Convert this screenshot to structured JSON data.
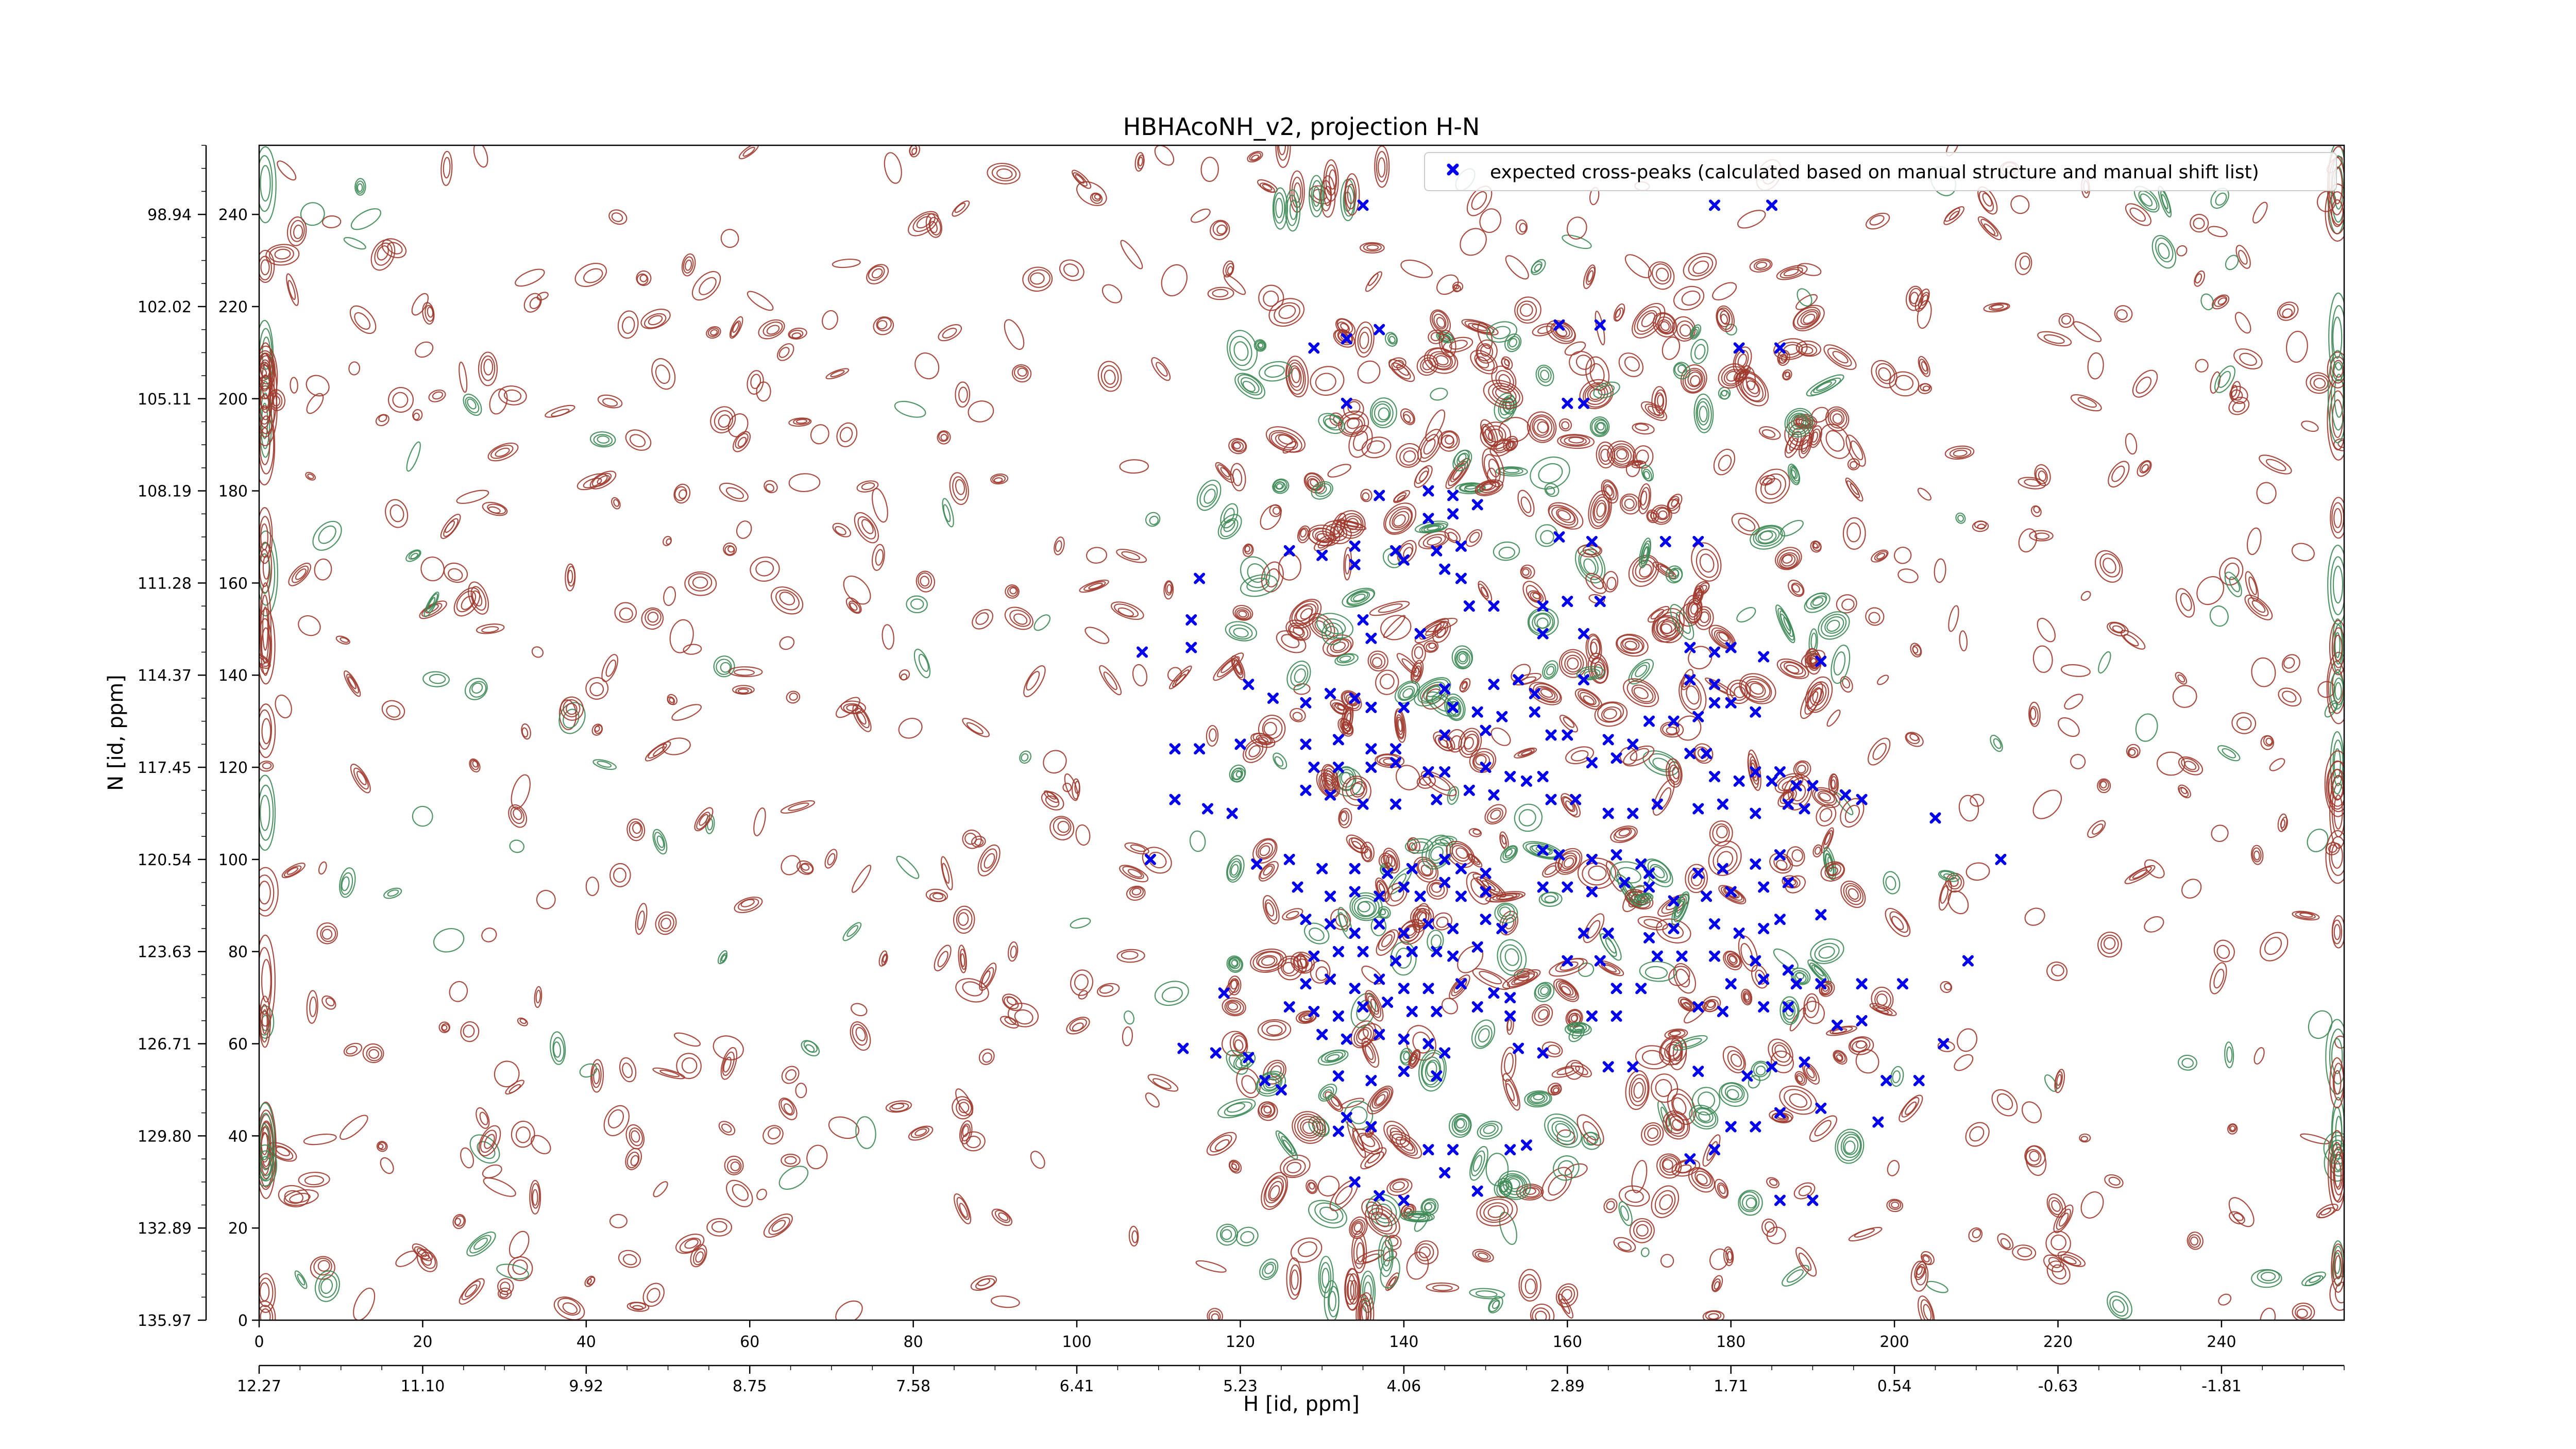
{
  "chart_data": {
    "type": "scatter",
    "title": "HBHAcoNH_v2, projection H-N",
    "xlabel": "H [id, ppm]",
    "ylabel": "N [id, ppm]",
    "xlim": [
      0,
      255
    ],
    "ylim": [
      0,
      255
    ],
    "grid": false,
    "legend": {
      "position": "top-right",
      "entries": [
        "expected cross-peaks (calculated based on manual structure and manual shift list)"
      ]
    },
    "x_index_ticks": [
      "0",
      "20",
      "40",
      "60",
      "80",
      "100",
      "120",
      "140",
      "160",
      "180",
      "200",
      "220",
      "240"
    ],
    "x_ppm_ticks": [
      "12.27",
      "11.10",
      "9.92",
      "8.75",
      "7.58",
      "6.41",
      "5.23",
      "4.06",
      "2.89",
      "1.71",
      "0.54",
      "-0.63",
      "-1.81"
    ],
    "y_index_ticks": [
      "0",
      "20",
      "40",
      "60",
      "80",
      "100",
      "120",
      "140",
      "160",
      "180",
      "200",
      "220",
      "240"
    ],
    "y_ppm_ticks": [
      "135.97",
      "132.89",
      "129.80",
      "126.71",
      "123.63",
      "120.54",
      "117.45",
      "114.37",
      "111.28",
      "108.19",
      "105.11",
      "102.02",
      "98.94"
    ],
    "colors": {
      "positive_contours": "#a0392c",
      "negative_contours": "#3d8a55",
      "peaks": "#0000ee"
    },
    "series": [
      {
        "name": "expected cross-peaks (calculated based on manual structure and manual shift list)",
        "points": [
          [
            135,
            242
          ],
          [
            185,
            242
          ],
          [
            178,
            242
          ],
          [
            129,
            211
          ],
          [
            133,
            213
          ],
          [
            137,
            215
          ],
          [
            159,
            216
          ],
          [
            164,
            216
          ],
          [
            181,
            211
          ],
          [
            186,
            211
          ],
          [
            133,
            199
          ],
          [
            160,
            199
          ],
          [
            162,
            199
          ],
          [
            137,
            179
          ],
          [
            143,
            180
          ],
          [
            146,
            179
          ],
          [
            143,
            174
          ],
          [
            146,
            175
          ],
          [
            149,
            177
          ],
          [
            159,
            170
          ],
          [
            163,
            169
          ],
          [
            172,
            169
          ],
          [
            176,
            169
          ],
          [
            126,
            167
          ],
          [
            130,
            166
          ],
          [
            134,
            168
          ],
          [
            139,
            167
          ],
          [
            144,
            167
          ],
          [
            147,
            168
          ],
          [
            134,
            164
          ],
          [
            140,
            165
          ],
          [
            145,
            163
          ],
          [
            147,
            161
          ],
          [
            115,
            161
          ],
          [
            157,
            155
          ],
          [
            160,
            156
          ],
          [
            164,
            156
          ],
          [
            148,
            155
          ],
          [
            151,
            155
          ],
          [
            135,
            152
          ],
          [
            136,
            148
          ],
          [
            142,
            149
          ],
          [
            157,
            149
          ],
          [
            162,
            149
          ],
          [
            114,
            152
          ],
          [
            108,
            145
          ],
          [
            114,
            146
          ],
          [
            121,
            138
          ],
          [
            131,
            136
          ],
          [
            145,
            137
          ],
          [
            151,
            138
          ],
          [
            154,
            139
          ],
          [
            156,
            136
          ],
          [
            162,
            139
          ],
          [
            175,
            146
          ],
          [
            178,
            145
          ],
          [
            180,
            146
          ],
          [
            175,
            139
          ],
          [
            178,
            138
          ],
          [
            184,
            144
          ],
          [
            191,
            143
          ],
          [
            124,
            135
          ],
          [
            128,
            134
          ],
          [
            134,
            135
          ],
          [
            136,
            133
          ],
          [
            140,
            133
          ],
          [
            146,
            133
          ],
          [
            149,
            132
          ],
          [
            152,
            131
          ],
          [
            156,
            132
          ],
          [
            178,
            134
          ],
          [
            180,
            134
          ],
          [
            183,
            132
          ],
          [
            170,
            130
          ],
          [
            173,
            130
          ],
          [
            176,
            131
          ],
          [
            145,
            127
          ],
          [
            150,
            128
          ],
          [
            158,
            127
          ],
          [
            160,
            127
          ],
          [
            165,
            126
          ],
          [
            168,
            125
          ],
          [
            112,
            124
          ],
          [
            115,
            124
          ],
          [
            120,
            125
          ],
          [
            128,
            125
          ],
          [
            132,
            126
          ],
          [
            136,
            124
          ],
          [
            139,
            124
          ],
          [
            129,
            120
          ],
          [
            132,
            120
          ],
          [
            136,
            120
          ],
          [
            139,
            121
          ],
          [
            143,
            119
          ],
          [
            145,
            119
          ],
          [
            150,
            120
          ],
          [
            153,
            118
          ],
          [
            155,
            117
          ],
          [
            157,
            118
          ],
          [
            163,
            121
          ],
          [
            166,
            122
          ],
          [
            175,
            123
          ],
          [
            177,
            123
          ],
          [
            183,
            119
          ],
          [
            186,
            119
          ],
          [
            178,
            118
          ],
          [
            181,
            117
          ],
          [
            185,
            117
          ],
          [
            188,
            116
          ],
          [
            190,
            116
          ],
          [
            194,
            114
          ],
          [
            196,
            113
          ],
          [
            112,
            113
          ],
          [
            116,
            111
          ],
          [
            119,
            110
          ],
          [
            128,
            115
          ],
          [
            131,
            114
          ],
          [
            135,
            112
          ],
          [
            139,
            112
          ],
          [
            144,
            113
          ],
          [
            148,
            115
          ],
          [
            151,
            114
          ],
          [
            158,
            113
          ],
          [
            161,
            113
          ],
          [
            165,
            110
          ],
          [
            168,
            110
          ],
          [
            171,
            112
          ],
          [
            176,
            111
          ],
          [
            179,
            112
          ],
          [
            183,
            110
          ],
          [
            187,
            112
          ],
          [
            189,
            111
          ],
          [
            205,
            109
          ],
          [
            109,
            100
          ],
          [
            122,
            99
          ],
          [
            126,
            100
          ],
          [
            130,
            98
          ],
          [
            134,
            98
          ],
          [
            138,
            97
          ],
          [
            141,
            98
          ],
          [
            145,
            100
          ],
          [
            147,
            98
          ],
          [
            150,
            97
          ],
          [
            157,
            102
          ],
          [
            159,
            101
          ],
          [
            163,
            100
          ],
          [
            166,
            101
          ],
          [
            169,
            99
          ],
          [
            170,
            97
          ],
          [
            176,
            97
          ],
          [
            179,
            98
          ],
          [
            183,
            99
          ],
          [
            186,
            101
          ],
          [
            213,
            100
          ],
          [
            127,
            94
          ],
          [
            131,
            92
          ],
          [
            134,
            93
          ],
          [
            137,
            92
          ],
          [
            140,
            94
          ],
          [
            142,
            92
          ],
          [
            145,
            95
          ],
          [
            147,
            92
          ],
          [
            150,
            93
          ],
          [
            157,
            94
          ],
          [
            160,
            94
          ],
          [
            163,
            93
          ],
          [
            167,
            95
          ],
          [
            170,
            94
          ],
          [
            173,
            91
          ],
          [
            177,
            92
          ],
          [
            180,
            93
          ],
          [
            184,
            94
          ],
          [
            187,
            95
          ],
          [
            191,
            88
          ],
          [
            128,
            87
          ],
          [
            131,
            86
          ],
          [
            134,
            84
          ],
          [
            137,
            86
          ],
          [
            140,
            84
          ],
          [
            143,
            86
          ],
          [
            146,
            85
          ],
          [
            150,
            87
          ],
          [
            152,
            85
          ],
          [
            162,
            84
          ],
          [
            165,
            84
          ],
          [
            170,
            83
          ],
          [
            173,
            85
          ],
          [
            178,
            86
          ],
          [
            181,
            84
          ],
          [
            184,
            85
          ],
          [
            186,
            87
          ],
          [
            129,
            79
          ],
          [
            132,
            80
          ],
          [
            135,
            80
          ],
          [
            139,
            78
          ],
          [
            141,
            80
          ],
          [
            144,
            80
          ],
          [
            146,
            79
          ],
          [
            149,
            81
          ],
          [
            160,
            78
          ],
          [
            164,
            78
          ],
          [
            171,
            79
          ],
          [
            174,
            79
          ],
          [
            178,
            79
          ],
          [
            183,
            78
          ],
          [
            187,
            76
          ],
          [
            209,
            78
          ],
          [
            128,
            73
          ],
          [
            131,
            74
          ],
          [
            134,
            72
          ],
          [
            137,
            74
          ],
          [
            140,
            72
          ],
          [
            143,
            72
          ],
          [
            147,
            73
          ],
          [
            151,
            71
          ],
          [
            153,
            70
          ],
          [
            166,
            72
          ],
          [
            169,
            72
          ],
          [
            180,
            73
          ],
          [
            184,
            74
          ],
          [
            188,
            73
          ],
          [
            191,
            73
          ],
          [
            196,
            73
          ],
          [
            201,
            73
          ],
          [
            118,
            71
          ],
          [
            126,
            68
          ],
          [
            129,
            67
          ],
          [
            132,
            66
          ],
          [
            135,
            68
          ],
          [
            138,
            69
          ],
          [
            141,
            67
          ],
          [
            144,
            67
          ],
          [
            149,
            68
          ],
          [
            153,
            66
          ],
          [
            163,
            66
          ],
          [
            166,
            66
          ],
          [
            176,
            68
          ],
          [
            179,
            67
          ],
          [
            184,
            68
          ],
          [
            187,
            68
          ],
          [
            193,
            64
          ],
          [
            196,
            65
          ],
          [
            113,
            59
          ],
          [
            117,
            58
          ],
          [
            121,
            57
          ],
          [
            130,
            62
          ],
          [
            133,
            61
          ],
          [
            137,
            62
          ],
          [
            140,
            61
          ],
          [
            143,
            60
          ],
          [
            145,
            58
          ],
          [
            154,
            59
          ],
          [
            157,
            58
          ],
          [
            165,
            55
          ],
          [
            168,
            55
          ],
          [
            176,
            54
          ],
          [
            182,
            53
          ],
          [
            185,
            55
          ],
          [
            189,
            56
          ],
          [
            199,
            52
          ],
          [
            203,
            52
          ],
          [
            206,
            60
          ],
          [
            123,
            52
          ],
          [
            125,
            50
          ],
          [
            132,
            53
          ],
          [
            136,
            52
          ],
          [
            140,
            54
          ],
          [
            144,
            53
          ],
          [
            186,
            45
          ],
          [
            191,
            46
          ],
          [
            198,
            43
          ],
          [
            133,
            44
          ],
          [
            136,
            42
          ],
          [
            132,
            41
          ],
          [
            180,
            42
          ],
          [
            183,
            42
          ],
          [
            143,
            37
          ],
          [
            146,
            37
          ],
          [
            153,
            37
          ],
          [
            155,
            38
          ],
          [
            137,
            27
          ],
          [
            140,
            26
          ],
          [
            149,
            28
          ],
          [
            186,
            26
          ],
          [
            190,
            26
          ],
          [
            134,
            30
          ],
          [
            145,
            32
          ],
          [
            175,
            35
          ],
          [
            178,
            37
          ]
        ]
      }
    ]
  }
}
